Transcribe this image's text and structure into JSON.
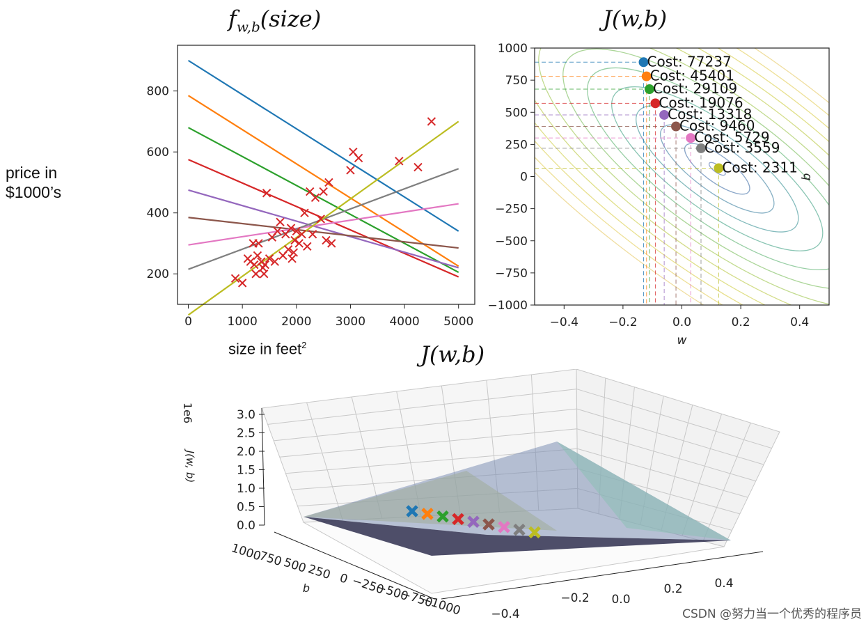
{
  "page": {
    "side_label_line1": "price in",
    "side_label_line2": "$1000’s",
    "watermark": "CSDN @努力当一个优秀的程序员"
  },
  "colors": {
    "tab_blue": "#1f77b4",
    "tab_orange": "#ff7f0e",
    "tab_green": "#2ca02c",
    "tab_red": "#d62728",
    "tab_purple": "#9467bd",
    "tab_brown": "#8c564b",
    "tab_pink": "#e377c2",
    "tab_gray": "#7f7f7f",
    "tab_olive": "#bcbd22",
    "contour_light": "#b7d99e",
    "contour_dark": "#8da0c8"
  },
  "chart_data": [
    {
      "type": "scatter",
      "title": "f_{w,b}(size)",
      "title_display": "f",
      "title_sub": "w,b",
      "title_rest": "(size)",
      "xlabel": "size in feet",
      "xlabel_sup": "2",
      "ylabel": "",
      "xlim": [
        -200,
        5300
      ],
      "ylim": [
        100,
        950
      ],
      "xticks": [
        0,
        1000,
        2000,
        3000,
        4000,
        5000
      ],
      "xtick_labels": [
        "0",
        "1000",
        "2000",
        "3000",
        "4000",
        "5000"
      ],
      "yticks": [
        200,
        400,
        600,
        800
      ],
      "ytick_labels": [
        "200",
        "400",
        "600",
        "800"
      ],
      "grid": false,
      "points": [
        [
          870,
          185
        ],
        [
          1000,
          170
        ],
        [
          1100,
          250
        ],
        [
          1150,
          240
        ],
        [
          1200,
          300
        ],
        [
          1220,
          230
        ],
        [
          1250,
          200
        ],
        [
          1280,
          260
        ],
        [
          1300,
          300
        ],
        [
          1350,
          240
        ],
        [
          1380,
          220
        ],
        [
          1400,
          200
        ],
        [
          1420,
          230
        ],
        [
          1450,
          465
        ],
        [
          1500,
          250
        ],
        [
          1550,
          320
        ],
        [
          1600,
          240
        ],
        [
          1650,
          340
        ],
        [
          1700,
          370
        ],
        [
          1750,
          260
        ],
        [
          1800,
          330
        ],
        [
          1850,
          280
        ],
        [
          1900,
          350
        ],
        [
          1920,
          250
        ],
        [
          1950,
          270
        ],
        [
          1970,
          310
        ],
        [
          2000,
          340
        ],
        [
          2050,
          300
        ],
        [
          2100,
          330
        ],
        [
          2150,
          400
        ],
        [
          2200,
          290
        ],
        [
          2250,
          470
        ],
        [
          2300,
          330
        ],
        [
          2350,
          450
        ],
        [
          2450,
          380
        ],
        [
          2500,
          470
        ],
        [
          2550,
          310
        ],
        [
          2600,
          500
        ],
        [
          2650,
          300
        ],
        [
          3000,
          540
        ],
        [
          3050,
          600
        ],
        [
          3150,
          580
        ],
        [
          3900,
          570
        ],
        [
          4250,
          550
        ],
        [
          4500,
          700
        ]
      ],
      "series": [
        {
          "color": "#1f77b4",
          "x": [
            0,
            5000
          ],
          "y": [
            900,
            340
          ]
        },
        {
          "color": "#ff7f0e",
          "x": [
            0,
            5000
          ],
          "y": [
            785,
            225
          ]
        },
        {
          "color": "#2ca02c",
          "x": [
            0,
            5000
          ],
          "y": [
            680,
            205
          ]
        },
        {
          "color": "#d62728",
          "x": [
            0,
            5000
          ],
          "y": [
            575,
            190
          ]
        },
        {
          "color": "#9467bd",
          "x": [
            0,
            5000
          ],
          "y": [
            475,
            220
          ]
        },
        {
          "color": "#8c564b",
          "x": [
            0,
            5000
          ],
          "y": [
            385,
            285
          ]
        },
        {
          "color": "#e377c2",
          "x": [
            0,
            5000
          ],
          "y": [
            295,
            430
          ]
        },
        {
          "color": "#7f7f7f",
          "x": [
            0,
            5000
          ],
          "y": [
            215,
            545
          ]
        },
        {
          "color": "#bcbd22",
          "x": [
            0,
            5000
          ],
          "y": [
            65,
            700
          ]
        }
      ]
    },
    {
      "type": "contour",
      "title": "J(w,b)",
      "xlabel": "w",
      "ylabel": "b",
      "xlim": [
        -0.5,
        0.5
      ],
      "ylim": [
        -1000,
        1000
      ],
      "xticks": [
        -0.4,
        -0.2,
        0.0,
        0.2,
        0.4
      ],
      "xtick_labels": [
        "−0.4",
        "−0.2",
        "0.0",
        "0.2",
        "0.4"
      ],
      "yticks": [
        1000,
        750,
        500,
        250,
        0,
        -250,
        -500,
        -750,
        -1000
      ],
      "ytick_labels": [
        "1000",
        "750",
        "500",
        "250",
        "0",
        "−250",
        "−500",
        "−750",
        "−1000"
      ],
      "center": [
        0.12,
        60
      ],
      "points": [
        {
          "w": -0.13,
          "b": 890,
          "cost": "Cost: 77237",
          "color": "#1f77b4"
        },
        {
          "w": -0.12,
          "b": 780,
          "cost": "Cost: 45401",
          "color": "#ff7f0e"
        },
        {
          "w": -0.11,
          "b": 680,
          "cost": "Cost: 29109",
          "color": "#2ca02c"
        },
        {
          "w": -0.09,
          "b": 570,
          "cost": "Cost: 19076",
          "color": "#d62728"
        },
        {
          "w": -0.06,
          "b": 480,
          "cost": "Cost: 13318",
          "color": "#9467bd"
        },
        {
          "w": -0.02,
          "b": 390,
          "cost": "Cost: 9460",
          "color": "#8c564b"
        },
        {
          "w": 0.03,
          "b": 300,
          "cost": "Cost: 5729",
          "color": "#e377c2"
        },
        {
          "w": 0.065,
          "b": 220,
          "cost": "Cost: 3559",
          "color": "#7f7f7f"
        },
        {
          "w": 0.125,
          "b": 65,
          "cost": "Cost: 2311",
          "color": "#bcbd22"
        }
      ]
    },
    {
      "type": "surface3d",
      "title": "J(w,b)",
      "zlabel": "J(w, b)",
      "zscale_label": "1e6",
      "zticks": [
        0.0,
        0.5,
        1.0,
        1.5,
        2.0,
        2.5,
        3.0
      ],
      "ztick_labels": [
        "0.0",
        "0.5",
        "1.0",
        "1.5",
        "2.0",
        "2.5",
        "3.0"
      ],
      "ylabel": "b",
      "yticks": [
        1000,
        750,
        500,
        250,
        0,
        -250,
        -500,
        -750,
        -1000
      ],
      "ytick_labels": [
        "1000",
        "750",
        "500",
        "250",
        "0",
        "−250",
        "−500",
        "−750",
        "−1000"
      ],
      "xticks": [
        -0.4,
        -0.2,
        0.0,
        0.2,
        0.4
      ],
      "xtick_labels": [
        "−0.4",
        "−0.2",
        "0.0",
        "0.2",
        "0.4"
      ],
      "markers": [
        "#1f77b4",
        "#ff7f0e",
        "#2ca02c",
        "#d62728",
        "#9467bd",
        "#8c564b",
        "#e377c2",
        "#7f7f7f",
        "#bcbd22"
      ]
    }
  ]
}
